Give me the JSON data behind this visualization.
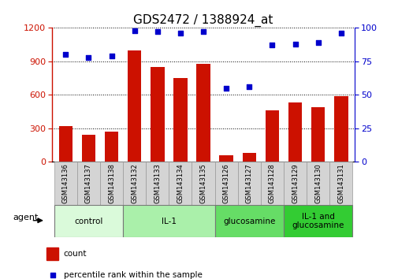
{
  "title": "GDS2472 / 1388924_at",
  "samples": [
    "GSM143136",
    "GSM143137",
    "GSM143138",
    "GSM143132",
    "GSM143133",
    "GSM143134",
    "GSM143135",
    "GSM143126",
    "GSM143127",
    "GSM143128",
    "GSM143129",
    "GSM143130",
    "GSM143131"
  ],
  "counts": [
    320,
    240,
    270,
    1000,
    850,
    750,
    875,
    60,
    80,
    460,
    530,
    490,
    590
  ],
  "percentiles": [
    80,
    78,
    79,
    98,
    97,
    96,
    97,
    55,
    56,
    87,
    88,
    89,
    96
  ],
  "bar_color": "#cc1100",
  "dot_color": "#0000cc",
  "ylim_left": [
    0,
    1200
  ],
  "ylim_right": [
    0,
    100
  ],
  "yticks_left": [
    0,
    300,
    600,
    900,
    1200
  ],
  "yticks_right": [
    0,
    25,
    50,
    75,
    100
  ],
  "groups": [
    {
      "label": "control",
      "indices": [
        0,
        1,
        2
      ],
      "color": "#dafada"
    },
    {
      "label": "IL-1",
      "indices": [
        3,
        4,
        5,
        6
      ],
      "color": "#aaf0aa"
    },
    {
      "label": "glucosamine",
      "indices": [
        7,
        8,
        9
      ],
      "color": "#66dd66"
    },
    {
      "label": "IL-1 and\nglucosamine",
      "indices": [
        10,
        11,
        12
      ],
      "color": "#33cc33"
    }
  ],
  "legend_count_label": "count",
  "legend_pct_label": "percentile rank within the sample",
  "agent_label": "agent",
  "background_color": "#ffffff",
  "title_fontsize": 11,
  "tick_fontsize": 8,
  "bar_width": 0.6
}
